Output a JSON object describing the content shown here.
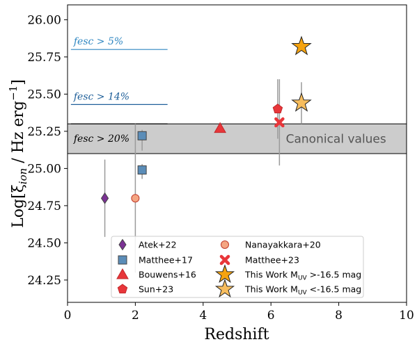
{
  "chart_data": {
    "type": "scatter",
    "xlabel": "Redshift",
    "ylabel": "Log[ξ_ion / Hz erg⁻¹]",
    "xlim": [
      0,
      10
    ],
    "ylim": [
      24.1,
      26.1
    ],
    "x_ticks": [
      0,
      2,
      4,
      6,
      8,
      10
    ],
    "y_ticks": [
      24.25,
      24.5,
      24.75,
      25.0,
      25.25,
      25.5,
      25.75,
      26.0
    ],
    "grid": false,
    "legend_position": "lower-center",
    "band": {
      "y_range": [
        25.1,
        25.3
      ],
      "label": "Canonical values",
      "color": "#cccccc"
    },
    "escape_lines": [
      {
        "label": "fesc > 5%",
        "y": 25.8,
        "x_range": [
          0.1,
          2.95
        ],
        "color": "#2e86c1"
      },
      {
        "label": "fesc > 14%",
        "y": 25.43,
        "x_range": [
          0.1,
          2.95
        ],
        "color": "#1f5f99"
      },
      {
        "label": "fesc > 20%",
        "y": 25.3,
        "x_range": [
          0.1,
          2.95
        ],
        "color": "#000000"
      }
    ],
    "series": [
      {
        "name": "Atek+22",
        "marker": "diamond",
        "color": "#7b3294",
        "points": [
          {
            "x": 1.1,
            "y": 24.8,
            "yerr_low": 0.26,
            "yerr_high": 0.26
          }
        ]
      },
      {
        "name": "Matthee+17",
        "marker": "square",
        "color": "#5b8db8",
        "points": [
          {
            "x": 2.2,
            "y": 25.22,
            "yerr_low": 0.1,
            "yerr_high": 0.04
          },
          {
            "x": 2.2,
            "y": 24.99,
            "yerr_low": 0.06,
            "yerr_high": 0.04
          }
        ]
      },
      {
        "name": "Bouwens+16",
        "marker": "triangle",
        "color": "#e8363a",
        "points": [
          {
            "x": 4.5,
            "y": 25.27
          }
        ]
      },
      {
        "name": "Sun+23",
        "marker": "pentagon",
        "color": "#e8363a",
        "points": [
          {
            "x": 6.2,
            "y": 25.4,
            "yerr_low": 0.2,
            "yerr_high": 0.2
          }
        ]
      },
      {
        "name": "Nanayakkara+20",
        "marker": "circle",
        "color": "#f4a582",
        "points": [
          {
            "x": 2.0,
            "y": 24.8,
            "yerr_low": 0.5,
            "yerr_high": 0.5
          }
        ]
      },
      {
        "name": "Matthee+23",
        "marker": "x",
        "color": "#e8363a",
        "points": [
          {
            "x": 6.25,
            "y": 25.31,
            "yerr_low": 0.29,
            "yerr_high": 0.29
          }
        ]
      },
      {
        "name": "This Work M_UV >-16.5 mag",
        "marker": "star",
        "color": "#f5a30f",
        "points": [
          {
            "x": 6.9,
            "y": 25.82
          }
        ]
      },
      {
        "name": "This Work M_UV <-16.5 mag",
        "marker": "star",
        "color": "#f7bd5d",
        "points": [
          {
            "x": 6.9,
            "y": 25.44,
            "yerr_low": 0.14,
            "yerr_high": 0.14
          }
        ]
      }
    ]
  },
  "legend": {
    "items": [
      {
        "label": "Atek+22",
        "marker": "diamond",
        "color": "#7b3294"
      },
      {
        "label": "Matthee+17",
        "marker": "square",
        "color": "#5b8db8"
      },
      {
        "label": "Bouwens+16",
        "marker": "triangle",
        "color": "#e8363a"
      },
      {
        "label": "Sun+23",
        "marker": "pentagon",
        "color": "#e8363a"
      },
      {
        "label": "Nanayakkara+20",
        "marker": "circle",
        "color": "#f4a582"
      },
      {
        "label": "Matthee+23",
        "marker": "x",
        "color": "#e8363a"
      },
      {
        "label": "This Work M",
        "sub": "UV",
        "suffix": " >-16.5 mag",
        "marker": "star",
        "color": "#f5a30f"
      },
      {
        "label": "This Work M",
        "sub": "UV",
        "suffix": " <-16.5 mag",
        "marker": "star-light",
        "color": "#f7bd5d"
      }
    ]
  }
}
